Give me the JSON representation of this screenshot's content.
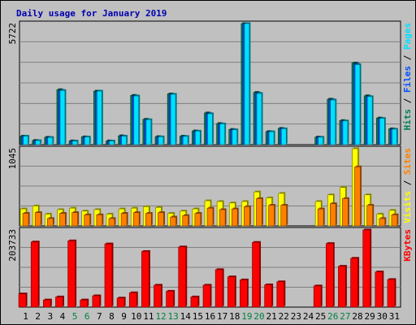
{
  "chart_data": {
    "type": "bar",
    "title": "Daily usage for January 2019",
    "categories": [
      "1",
      "2",
      "3",
      "4",
      "5",
      "6",
      "7",
      "8",
      "9",
      "10",
      "11",
      "12",
      "13",
      "14",
      "15",
      "16",
      "17",
      "18",
      "19",
      "20",
      "21",
      "22",
      "23",
      "24",
      "25",
      "26",
      "27",
      "28",
      "29",
      "30",
      "31"
    ],
    "weekend_days": [
      "5",
      "6",
      "12",
      "13",
      "19",
      "20",
      "26",
      "27"
    ],
    "panels": [
      {
        "id": "pages-files-hits",
        "ymax": 5722,
        "ymax_label": "5722",
        "legend": [
          {
            "name": "Pages",
            "color": "#00e0ff"
          },
          {
            "name": "Files",
            "color": "#0050ff"
          },
          {
            "name": "Hits",
            "color": "#008050"
          }
        ],
        "series": [
          {
            "name": "Hits",
            "color": "#008050",
            "values": [
              400,
              200,
              350,
              2600,
              180,
              370,
              2530,
              180,
              420,
              2330,
              1200,
              380,
              2400,
              400,
              650,
              1500,
              1000,
              720,
              5722,
              2470,
              620,
              770,
              0,
              0,
              360,
              2150,
              1140,
              3860,
              2310,
              1260,
              750
            ]
          },
          {
            "name": "Files",
            "color": "#0050ff",
            "values": [
              380,
              180,
              320,
              2560,
              170,
              350,
              2500,
              170,
              400,
              2300,
              1170,
              360,
              2360,
              380,
              620,
              1470,
              970,
              700,
              5722,
              2430,
              600,
              750,
              0,
              0,
              340,
              2120,
              1110,
              3810,
              2270,
              1230,
              730
            ]
          },
          {
            "name": "Pages",
            "color": "#00e0ff",
            "values": [
              400,
              190,
              340,
              2560,
              170,
              360,
              2530,
              170,
              400,
              2300,
              1180,
              370,
              2380,
              390,
              640,
              1460,
              980,
              700,
              5722,
              2420,
              610,
              750,
              0,
              0,
              350,
              2110,
              1120,
              3780,
              2270,
              1240,
              730
            ]
          }
        ]
      },
      {
        "id": "sites-visits",
        "ymax": 1045,
        "ymax_label": "1045",
        "legend": [
          {
            "name": "Sites",
            "color": "#ff8000"
          },
          {
            "name": "Visits",
            "color": "#ffff00"
          }
        ],
        "series": [
          {
            "name": "Visits",
            "color": "#ffff00",
            "values": [
              230,
              270,
              160,
              220,
              240,
              200,
              220,
              160,
              230,
              240,
              260,
              250,
              170,
              200,
              230,
              340,
              330,
              310,
              330,
              460,
              380,
              440,
              0,
              0,
              330,
              420,
              520,
              1045,
              420,
              160,
              210
            ]
          },
          {
            "name": "Sites",
            "color": "#ff8000",
            "values": [
              170,
              180,
              100,
              170,
              180,
              150,
              150,
              100,
              170,
              180,
              170,
              180,
              120,
              140,
              170,
              240,
              220,
              230,
              260,
              370,
              280,
              280,
              0,
              0,
              230,
              300,
              370,
              800,
              280,
              100,
              150
            ]
          }
        ]
      },
      {
        "id": "kbytes",
        "ymax": 203733,
        "ymax_label": "203733",
        "legend": [
          {
            "name": "KBytes",
            "color": "#ff0000"
          }
        ],
        "series": [
          {
            "name": "KBytes",
            "color": "#ff0000",
            "values": [
              35000,
              172000,
              19000,
              27000,
              175000,
              19000,
              30000,
              167000,
              24000,
              38000,
              147000,
              58000,
              42000,
              159000,
              27000,
              58000,
              99000,
              80000,
              72000,
              171000,
              59000,
              67000,
              0,
              0,
              56000,
              168000,
              108000,
              129000,
              203733,
              93000,
              73000
            ]
          }
        ]
      }
    ]
  }
}
